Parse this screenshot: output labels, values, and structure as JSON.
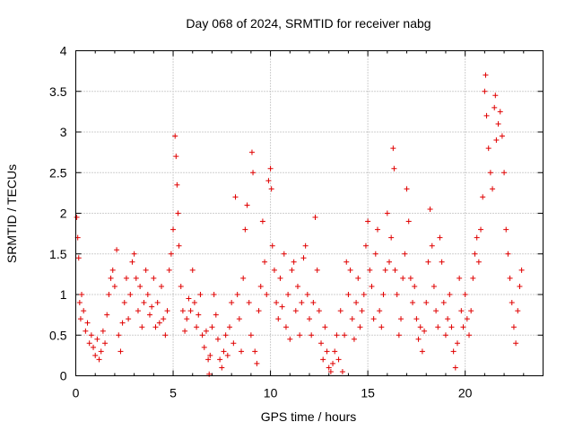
{
  "chart_data": {
    "type": "scatter",
    "title": "Day 068 of 2024, SRMTID for receiver nabg",
    "xlabel": "GPS time / hours",
    "ylabel": "SRMTID / TECUs",
    "xlim": [
      0,
      24
    ],
    "ylim": [
      0,
      4
    ],
    "xticks": [
      0,
      5,
      10,
      15,
      20
    ],
    "xtick_labels": [
      "0",
      "5",
      "10",
      "15",
      "20"
    ],
    "yticks": [
      0,
      0.5,
      1,
      1.5,
      2,
      2.5,
      3,
      3.5,
      4
    ],
    "ytick_labels": [
      "0",
      "0.5",
      "1",
      "1.5",
      "2",
      "2.5",
      "3",
      "3.5",
      "4"
    ],
    "grid": true,
    "marker": "+",
    "marker_color": "#e00000",
    "series": [
      {
        "name": "nabg",
        "points": [
          [
            0.05,
            1.95
          ],
          [
            0.1,
            1.7
          ],
          [
            0.15,
            1.45
          ],
          [
            0.2,
            0.9
          ],
          [
            0.25,
            0.7
          ],
          [
            0.3,
            1.0
          ],
          [
            0.4,
            0.8
          ],
          [
            0.5,
            0.55
          ],
          [
            0.6,
            0.65
          ],
          [
            0.7,
            0.4
          ],
          [
            0.8,
            0.5
          ],
          [
            0.9,
            0.35
          ],
          [
            1.0,
            0.25
          ],
          [
            1.1,
            0.45
          ],
          [
            1.2,
            0.2
          ],
          [
            1.3,
            0.3
          ],
          [
            1.4,
            0.55
          ],
          [
            1.5,
            0.4
          ],
          [
            1.6,
            0.75
          ],
          [
            1.7,
            1.0
          ],
          [
            1.8,
            1.2
          ],
          [
            1.9,
            1.3
          ],
          [
            2.0,
            1.1
          ],
          [
            2.1,
            1.55
          ],
          [
            2.2,
            0.5
          ],
          [
            2.3,
            0.3
          ],
          [
            2.4,
            0.65
          ],
          [
            2.5,
            0.9
          ],
          [
            2.6,
            1.2
          ],
          [
            2.7,
            0.7
          ],
          [
            2.8,
            1.0
          ],
          [
            2.9,
            1.4
          ],
          [
            3.0,
            1.5
          ],
          [
            3.1,
            1.2
          ],
          [
            3.2,
            0.8
          ],
          [
            3.3,
            1.1
          ],
          [
            3.4,
            0.6
          ],
          [
            3.5,
            0.9
          ],
          [
            3.6,
            1.3
          ],
          [
            3.7,
            1.0
          ],
          [
            3.8,
            0.75
          ],
          [
            3.9,
            0.85
          ],
          [
            4.0,
            1.2
          ],
          [
            4.1,
            0.6
          ],
          [
            4.2,
            0.9
          ],
          [
            4.3,
            0.65
          ],
          [
            4.4,
            1.1
          ],
          [
            4.5,
            0.7
          ],
          [
            4.6,
            0.5
          ],
          [
            4.7,
            0.8
          ],
          [
            4.8,
            1.3
          ],
          [
            4.9,
            1.5
          ],
          [
            5.0,
            1.8
          ],
          [
            5.1,
            2.95
          ],
          [
            5.15,
            2.7
          ],
          [
            5.2,
            2.35
          ],
          [
            5.25,
            2.0
          ],
          [
            5.3,
            1.6
          ],
          [
            5.4,
            1.1
          ],
          [
            5.5,
            0.8
          ],
          [
            5.6,
            0.55
          ],
          [
            5.7,
            0.7
          ],
          [
            5.8,
            0.95
          ],
          [
            5.9,
            0.8
          ],
          [
            6.0,
            1.3
          ],
          [
            6.1,
            0.9
          ],
          [
            6.2,
            0.6
          ],
          [
            6.3,
            0.75
          ],
          [
            6.4,
            1.0
          ],
          [
            6.5,
            0.5
          ],
          [
            6.6,
            0.35
          ],
          [
            6.7,
            0.55
          ],
          [
            6.8,
            0.2
          ],
          [
            6.85,
            0.02
          ],
          [
            6.9,
            0.25
          ],
          [
            7.0,
            0.6
          ],
          [
            7.1,
            1.0
          ],
          [
            7.2,
            0.75
          ],
          [
            7.3,
            0.45
          ],
          [
            7.4,
            0.2
          ],
          [
            7.5,
            0.1
          ],
          [
            7.6,
            0.3
          ],
          [
            7.7,
            0.5
          ],
          [
            7.8,
            0.25
          ],
          [
            7.9,
            0.6
          ],
          [
            8.0,
            0.9
          ],
          [
            8.1,
            0.4
          ],
          [
            8.2,
            2.2
          ],
          [
            8.3,
            1.0
          ],
          [
            8.4,
            0.7
          ],
          [
            8.5,
            0.3
          ],
          [
            8.6,
            1.2
          ],
          [
            8.7,
            1.8
          ],
          [
            8.8,
            2.1
          ],
          [
            8.9,
            0.9
          ],
          [
            9.0,
            0.5
          ],
          [
            9.05,
            2.75
          ],
          [
            9.1,
            2.5
          ],
          [
            9.2,
            0.3
          ],
          [
            9.3,
            0.15
          ],
          [
            9.4,
            0.8
          ],
          [
            9.5,
            1.1
          ],
          [
            9.6,
            1.9
          ],
          [
            9.7,
            1.4
          ],
          [
            9.8,
            1.0
          ],
          [
            9.9,
            2.4
          ],
          [
            10.0,
            2.55
          ],
          [
            10.05,
            2.3
          ],
          [
            10.1,
            1.6
          ],
          [
            10.2,
            1.3
          ],
          [
            10.3,
            0.9
          ],
          [
            10.4,
            0.7
          ],
          [
            10.5,
            1.2
          ],
          [
            10.6,
            0.85
          ],
          [
            10.7,
            1.5
          ],
          [
            10.8,
            0.6
          ],
          [
            10.9,
            1.0
          ],
          [
            11.0,
            0.45
          ],
          [
            11.1,
            1.3
          ],
          [
            11.2,
            1.4
          ],
          [
            11.3,
            0.8
          ],
          [
            11.4,
            1.1
          ],
          [
            11.5,
            0.5
          ],
          [
            11.6,
            0.9
          ],
          [
            11.7,
            1.45
          ],
          [
            11.8,
            1.6
          ],
          [
            11.9,
            1.0
          ],
          [
            12.0,
            0.7
          ],
          [
            12.1,
            0.5
          ],
          [
            12.2,
            0.9
          ],
          [
            12.3,
            1.95
          ],
          [
            12.4,
            1.3
          ],
          [
            12.5,
            0.8
          ],
          [
            12.6,
            0.4
          ],
          [
            12.7,
            0.2
          ],
          [
            12.8,
            0.6
          ],
          [
            12.9,
            0.3
          ],
          [
            13.0,
            0.1
          ],
          [
            13.1,
            0.05
          ],
          [
            13.2,
            0.15
          ],
          [
            13.3,
            0.3
          ],
          [
            13.4,
            0.5
          ],
          [
            13.5,
            0.2
          ],
          [
            13.6,
            0.8
          ],
          [
            13.7,
            0.05
          ],
          [
            13.8,
            0.5
          ],
          [
            13.9,
            1.4
          ],
          [
            14.0,
            1.0
          ],
          [
            14.1,
            1.3
          ],
          [
            14.2,
            0.7
          ],
          [
            14.3,
            0.45
          ],
          [
            14.4,
            0.9
          ],
          [
            14.5,
            1.2
          ],
          [
            14.6,
            0.6
          ],
          [
            14.7,
            0.8
          ],
          [
            14.8,
            1.0
          ],
          [
            14.9,
            1.6
          ],
          [
            15.0,
            1.9
          ],
          [
            15.1,
            1.3
          ],
          [
            15.2,
            1.1
          ],
          [
            15.3,
            0.7
          ],
          [
            15.4,
            1.5
          ],
          [
            15.5,
            1.8
          ],
          [
            15.6,
            0.8
          ],
          [
            15.7,
            0.6
          ],
          [
            15.8,
            1.0
          ],
          [
            15.9,
            1.3
          ],
          [
            16.0,
            2.0
          ],
          [
            16.1,
            1.4
          ],
          [
            16.2,
            1.7
          ],
          [
            16.3,
            2.8
          ],
          [
            16.35,
            2.55
          ],
          [
            16.4,
            1.3
          ],
          [
            16.5,
            1.0
          ],
          [
            16.6,
            0.5
          ],
          [
            16.7,
            0.7
          ],
          [
            16.8,
            1.2
          ],
          [
            16.9,
            1.5
          ],
          [
            17.0,
            2.3
          ],
          [
            17.1,
            1.9
          ],
          [
            17.2,
            1.2
          ],
          [
            17.3,
            0.9
          ],
          [
            17.4,
            1.1
          ],
          [
            17.5,
            0.7
          ],
          [
            17.6,
            0.45
          ],
          [
            17.7,
            0.6
          ],
          [
            17.8,
            0.3
          ],
          [
            17.9,
            0.55
          ],
          [
            18.0,
            0.9
          ],
          [
            18.1,
            1.4
          ],
          [
            18.2,
            2.05
          ],
          [
            18.3,
            1.6
          ],
          [
            18.4,
            1.1
          ],
          [
            18.5,
            0.8
          ],
          [
            18.6,
            0.6
          ],
          [
            18.7,
            1.7
          ],
          [
            18.8,
            1.4
          ],
          [
            18.9,
            0.9
          ],
          [
            19.0,
            0.5
          ],
          [
            19.1,
            0.7
          ],
          [
            19.2,
            1.0
          ],
          [
            19.3,
            0.6
          ],
          [
            19.4,
            0.3
          ],
          [
            19.5,
            0.1
          ],
          [
            19.6,
            0.4
          ],
          [
            19.7,
            1.2
          ],
          [
            19.8,
            0.8
          ],
          [
            19.9,
            0.6
          ],
          [
            20.0,
            1.0
          ],
          [
            20.1,
            0.7
          ],
          [
            20.2,
            0.5
          ],
          [
            20.3,
            0.8
          ],
          [
            20.4,
            1.2
          ],
          [
            20.5,
            1.5
          ],
          [
            20.6,
            1.7
          ],
          [
            20.7,
            1.4
          ],
          [
            20.8,
            1.8
          ],
          [
            20.9,
            2.2
          ],
          [
            21.0,
            3.5
          ],
          [
            21.05,
            3.7
          ],
          [
            21.1,
            3.2
          ],
          [
            21.2,
            2.8
          ],
          [
            21.3,
            2.5
          ],
          [
            21.4,
            2.3
          ],
          [
            21.5,
            3.3
          ],
          [
            21.55,
            3.45
          ],
          [
            21.6,
            2.9
          ],
          [
            21.7,
            3.1
          ],
          [
            21.8,
            3.25
          ],
          [
            21.9,
            2.95
          ],
          [
            22.0,
            2.5
          ],
          [
            22.1,
            1.8
          ],
          [
            22.2,
            1.5
          ],
          [
            22.3,
            1.2
          ],
          [
            22.4,
            0.9
          ],
          [
            22.5,
            0.6
          ],
          [
            22.6,
            0.4
          ],
          [
            22.7,
            0.8
          ],
          [
            22.8,
            1.1
          ],
          [
            22.9,
            1.3
          ]
        ]
      }
    ]
  }
}
